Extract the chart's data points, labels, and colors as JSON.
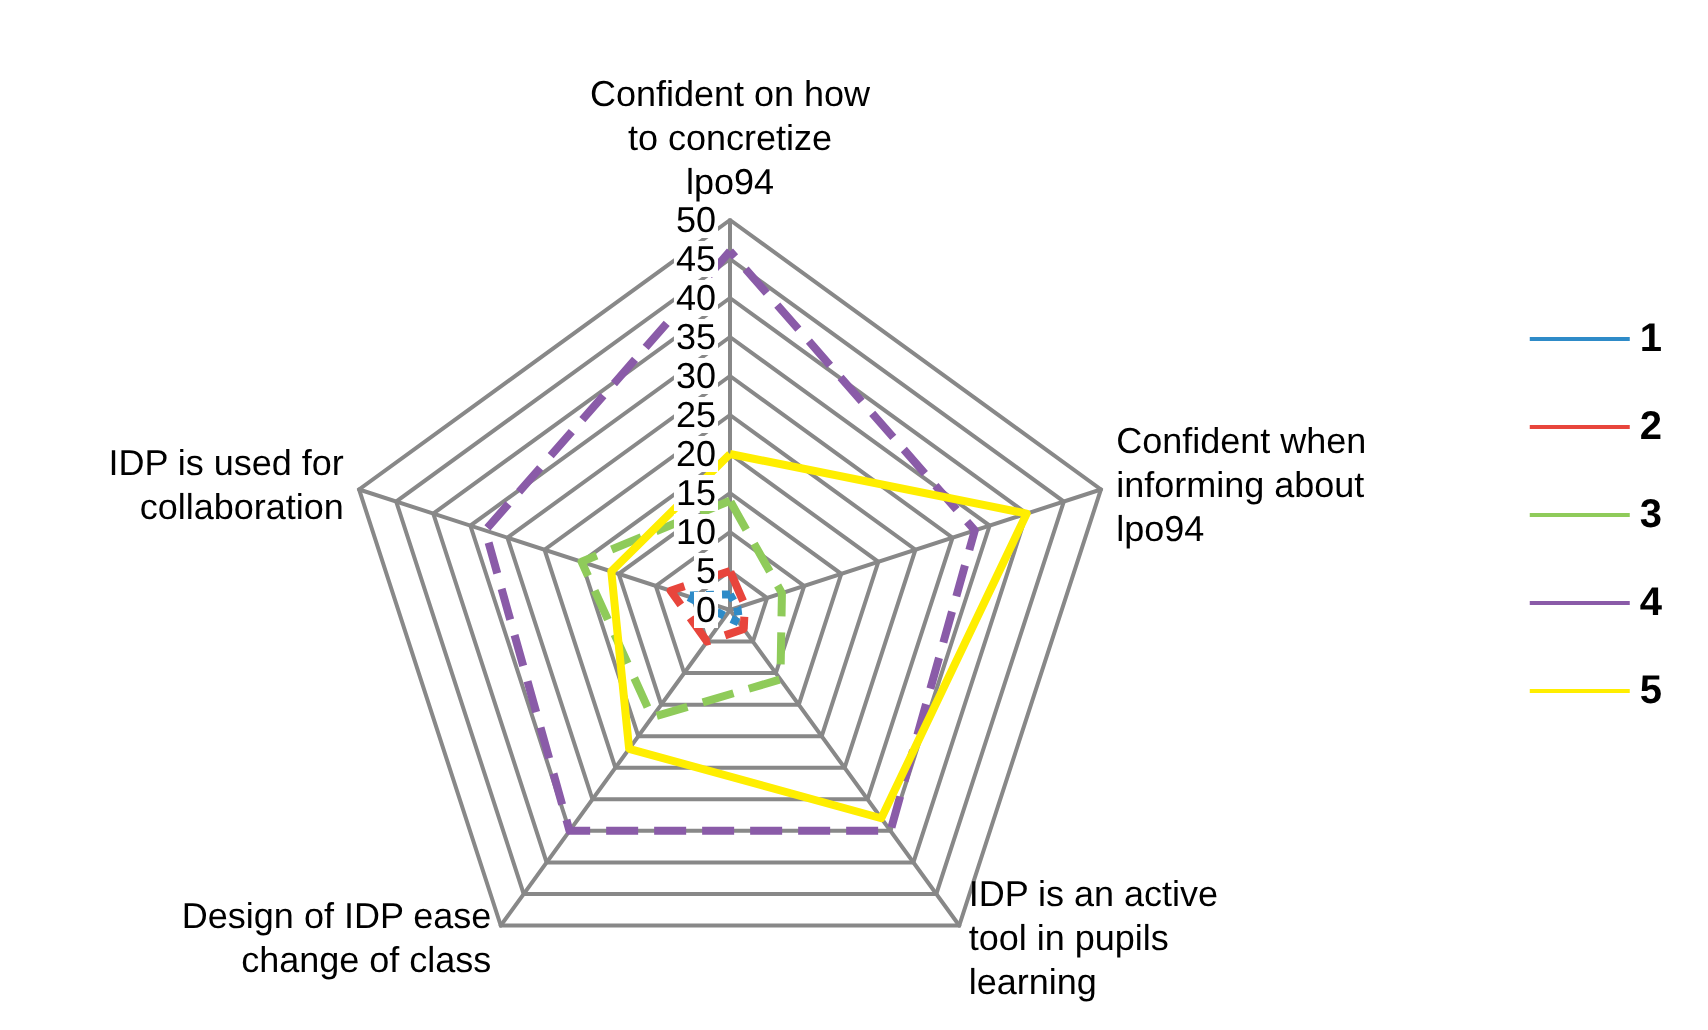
{
  "chart_data": {
    "type": "radar",
    "categories": [
      "Confident on how to concretize lpo94",
      "Confident when informing about lpo94",
      "IDP is an active tool in pupils learning",
      "Design of IDP ease change of class",
      "IDP is used for collaboration"
    ],
    "series": [
      {
        "name": "1",
        "color": "#2e8bc8",
        "line_style": "dotted",
        "values": [
          2,
          1,
          2,
          1,
          6
        ]
      },
      {
        "name": "2",
        "color": "#e8453c",
        "line_style": "dashed",
        "values": [
          5,
          2,
          3,
          5,
          8
        ]
      },
      {
        "name": "3",
        "color": "#8fcb5a",
        "line_style": "dashed",
        "values": [
          14,
          7,
          11,
          17,
          20
        ]
      },
      {
        "name": "4",
        "color": "#8a5ba8",
        "line_style": "dashed",
        "values": [
          46,
          33,
          35,
          35,
          33
        ]
      },
      {
        "name": "5",
        "color": "#ffee00",
        "line_style": "solid",
        "values": [
          20,
          40,
          33,
          22,
          16
        ]
      }
    ],
    "ylim": [
      0,
      50
    ],
    "yticks": [
      0,
      5,
      10,
      15,
      20,
      25,
      30,
      35,
      40,
      45,
      50
    ],
    "grid": true,
    "legend": "right",
    "marker": "none"
  }
}
